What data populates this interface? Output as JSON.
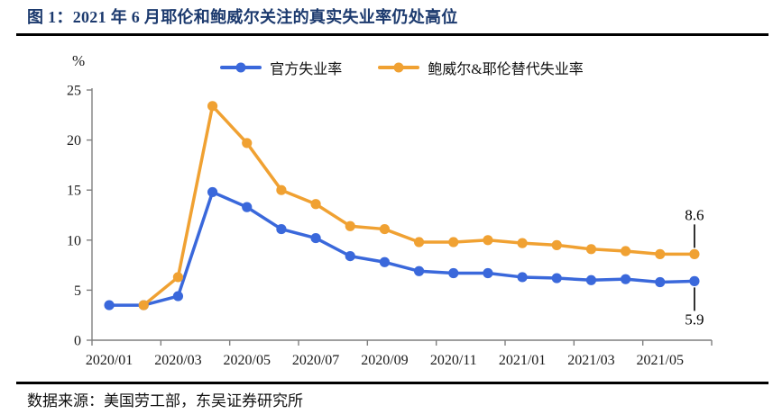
{
  "page": {
    "title": "图 1：2021 年 6 月耶伦和鲍威尔关注的真实失业率仍处高位",
    "source": "数据来源：美国劳工部，东吴证券研究所"
  },
  "colors": {
    "title_navy": "#1C3A6E",
    "official_blue": "#3A68DB",
    "alternative_orange": "#F0A132",
    "axis_gray": "#7F7F7F",
    "tick_text": "#1A1A1A",
    "annotation_black": "#000000"
  },
  "chart_data": {
    "type": "line",
    "unit_label": "%",
    "x": [
      "2020/01",
      "2020/02",
      "2020/03",
      "2020/04",
      "2020/05",
      "2020/06",
      "2020/07",
      "2020/08",
      "2020/09",
      "2020/10",
      "2020/11",
      "2020/12",
      "2021/01",
      "2021/02",
      "2021/03",
      "2021/04",
      "2021/05",
      "2021/06"
    ],
    "x_tick_labels": [
      "2020/01",
      "2020/03",
      "2020/05",
      "2020/07",
      "2020/09",
      "2020/11",
      "2021/01",
      "2021/03",
      "2021/05"
    ],
    "x_tick_every": 2,
    "ylim": [
      0,
      25
    ],
    "y_ticks": [
      0,
      5,
      10,
      15,
      20,
      25
    ],
    "grid": false,
    "legend_position": "top-center",
    "series": [
      {
        "name": "官方失业率",
        "color": "#3A68DB",
        "values": [
          3.5,
          3.5,
          4.4,
          14.8,
          13.3,
          11.1,
          10.2,
          8.4,
          7.8,
          6.9,
          6.7,
          6.7,
          6.3,
          6.2,
          6.0,
          6.1,
          5.8,
          5.9
        ]
      },
      {
        "name": "鲍威尔&耶伦替代失业率",
        "color": "#F0A132",
        "values": [
          null,
          3.5,
          6.3,
          23.4,
          19.7,
          15.0,
          13.6,
          11.4,
          11.1,
          9.8,
          9.8,
          10.0,
          9.7,
          9.5,
          9.1,
          8.9,
          8.6,
          8.6
        ]
      }
    ],
    "annotations": [
      {
        "text": "8.6",
        "series": 1,
        "point": "last",
        "placement": "above"
      },
      {
        "text": "5.9",
        "series": 0,
        "point": "last",
        "placement": "below"
      }
    ]
  }
}
